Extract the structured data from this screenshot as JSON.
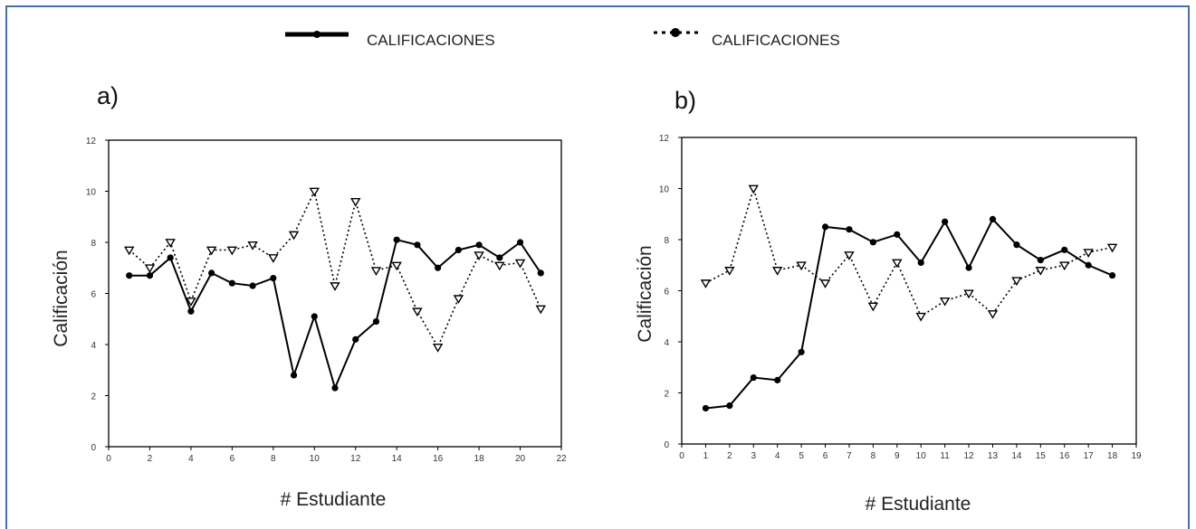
{
  "legend": {
    "items": [
      {
        "label": "CALIFICACIONES",
        "style": "solid"
      },
      {
        "label": "CALIFICACIONES",
        "style": "dotted"
      }
    ]
  },
  "colors": {
    "frame": "#4a6fa5",
    "line": "#000000"
  },
  "chart_data": [
    {
      "type": "line",
      "panel_label": "a)",
      "xlabel": "# Estudiante",
      "ylabel": "Calificación",
      "xlim": [
        0,
        22
      ],
      "ylim": [
        0,
        12
      ],
      "xticks": [
        0,
        2,
        4,
        6,
        8,
        10,
        12,
        14,
        16,
        18,
        20,
        22
      ],
      "yticks": [
        0,
        2,
        4,
        6,
        8,
        10,
        12
      ],
      "grid": false,
      "x": [
        1,
        2,
        3,
        4,
        5,
        6,
        7,
        8,
        9,
        10,
        11,
        12,
        13,
        14,
        15,
        16,
        17,
        18,
        19,
        20,
        21
      ],
      "series": [
        {
          "style": "solid",
          "marker": "filled-circle",
          "values": [
            6.7,
            6.7,
            7.4,
            5.3,
            6.8,
            6.4,
            6.3,
            6.6,
            2.8,
            5.1,
            2.3,
            4.2,
            4.9,
            8.1,
            7.9,
            7.0,
            7.7,
            7.9,
            7.4,
            8.0,
            6.8
          ]
        },
        {
          "style": "dotted",
          "marker": "open-triangle",
          "values": [
            7.7,
            7.0,
            8.0,
            5.7,
            7.7,
            7.7,
            7.9,
            7.4,
            8.3,
            10.0,
            6.3,
            9.6,
            6.9,
            7.1,
            5.3,
            3.9,
            5.8,
            7.5,
            7.1,
            7.2,
            5.4
          ]
        }
      ]
    },
    {
      "type": "line",
      "panel_label": "b)",
      "xlabel": "# Estudiante",
      "ylabel": "Calificación",
      "xlim": [
        0,
        19
      ],
      "ylim": [
        0,
        12
      ],
      "xticks": [
        0,
        1,
        2,
        3,
        4,
        5,
        6,
        7,
        8,
        9,
        10,
        11,
        12,
        13,
        14,
        15,
        16,
        17,
        18,
        19
      ],
      "yticks": [
        0,
        2,
        4,
        6,
        8,
        10,
        12
      ],
      "grid": false,
      "x": [
        1,
        2,
        3,
        4,
        5,
        6,
        7,
        8,
        9,
        10,
        11,
        12,
        13,
        14,
        15,
        16,
        17,
        18
      ],
      "series": [
        {
          "style": "solid",
          "marker": "filled-circle",
          "values": [
            1.4,
            1.5,
            2.6,
            2.5,
            3.6,
            8.5,
            8.4,
            7.9,
            8.2,
            7.1,
            8.7,
            6.9,
            8.8,
            7.8,
            7.2,
            7.6,
            7.0,
            6.6
          ]
        },
        {
          "style": "dotted",
          "marker": "open-triangle",
          "values": [
            6.3,
            6.8,
            10.0,
            6.8,
            7.0,
            6.3,
            7.4,
            5.4,
            7.1,
            5.0,
            5.6,
            5.9,
            5.1,
            6.4,
            6.8,
            7.0,
            7.5,
            7.7
          ]
        }
      ]
    }
  ]
}
